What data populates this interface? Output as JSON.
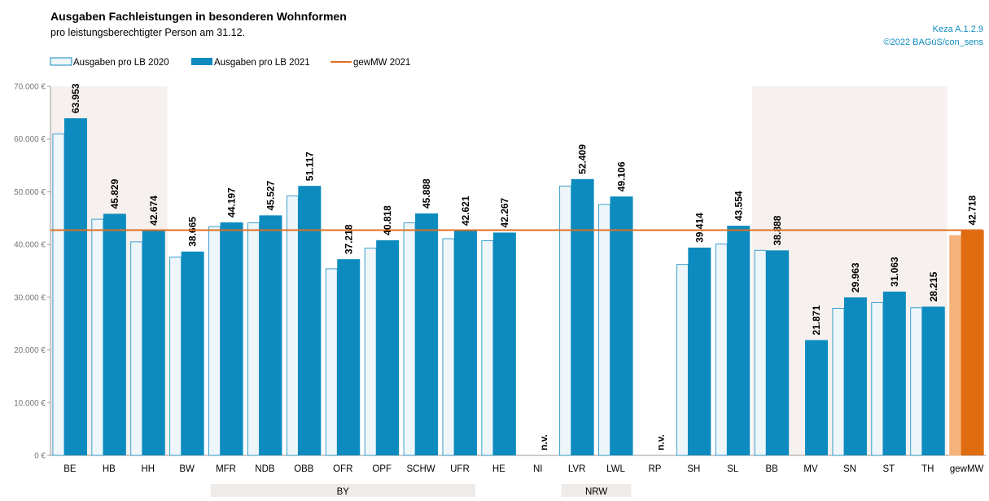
{
  "chart_data": {
    "type": "bar",
    "title": "Ausgaben Fachleistungen in besonderen Wohnformen",
    "subtitle": "pro leistungsberechtigter Person am 31.12.",
    "source_code": "Keza A.1.2.9",
    "source": "©2022 BAGüS/con_sens",
    "categories": [
      "BE",
      "HB",
      "HH",
      "BW",
      "MFR",
      "NDB",
      "OBB",
      "OFR",
      "OPF",
      "SCHW",
      "UFR",
      "HE",
      "NI",
      "LVR",
      "LWL",
      "RP",
      "SH",
      "SL",
      "BB",
      "MV",
      "SN",
      "ST",
      "TH",
      "gewMW"
    ],
    "series": [
      {
        "name": "Ausgaben pro LB 2020",
        "color": "#eef6fa",
        "stroke": "#0d8bbf",
        "colors": [
          "#eef6fa",
          "#eef6fa",
          "#eef6fa",
          "#eef6fa",
          "#eef6fa",
          "#eef6fa",
          "#eef6fa",
          "#eef6fa",
          "#eef6fa",
          "#eef6fa",
          "#eef6fa",
          "#eef6fa",
          "#eef6fa",
          "#eef6fa",
          "#eef6fa",
          "#eef6fa",
          "#eef6fa",
          "#eef6fa",
          "#eef6fa",
          "#eef6fa",
          "#eef6fa",
          "#eef6fa",
          "#eef6fa",
          "#f5b27a"
        ],
        "values": [
          61000,
          44800,
          40500,
          37600,
          43400,
          44100,
          49200,
          35400,
          39300,
          44100,
          41100,
          40700,
          null,
          51100,
          47600,
          null,
          36200,
          40100,
          38900,
          null,
          27900,
          29000,
          28000,
          41700
        ]
      },
      {
        "name": "Ausgaben pro LB 2021",
        "color": "#0d8bbf",
        "colors": [
          "#0d8bbf",
          "#0d8bbf",
          "#0d8bbf",
          "#0d8bbf",
          "#0d8bbf",
          "#0d8bbf",
          "#0d8bbf",
          "#0d8bbf",
          "#0d8bbf",
          "#0d8bbf",
          "#0d8bbf",
          "#0d8bbf",
          "#0d8bbf",
          "#0d8bbf",
          "#0d8bbf",
          "#0d8bbf",
          "#0d8bbf",
          "#0d8bbf",
          "#0d8bbf",
          "#0d8bbf",
          "#0d8bbf",
          "#0d8bbf",
          "#0d8bbf",
          "#e06c10"
        ],
        "values": [
          63953,
          45829,
          42674,
          38665,
          44197,
          45527,
          51117,
          37218,
          40818,
          45888,
          42621,
          42267,
          null,
          52409,
          49106,
          null,
          39414,
          43554,
          38888,
          21871,
          29963,
          31063,
          28215,
          42718
        ],
        "value_labels": [
          "63.953",
          "45.829",
          "42.674",
          "38.665",
          "44.197",
          "45.527",
          "51.117",
          "37.218",
          "40.818",
          "45.888",
          "42.621",
          "42.267",
          "n.v.",
          "52.409",
          "49.106",
          "n.v.",
          "39.414",
          "43.554",
          "38.888",
          "21.871",
          "29.963",
          "31.063",
          "28.215",
          "42.718"
        ]
      }
    ],
    "reference_line": {
      "name": "gewMW 2021",
      "value": 42718,
      "color": "#e07020"
    },
    "ylim": [
      0,
      70000
    ],
    "yticks": [
      {
        "value": 0,
        "label": "0 €"
      },
      {
        "value": 10000,
        "label": "10.000 €"
      },
      {
        "value": 20000,
        "label": "20.000 €"
      },
      {
        "value": 30000,
        "label": "30.000 €"
      },
      {
        "value": 40000,
        "label": "40.000 €"
      },
      {
        "value": 50000,
        "label": "50.000 €"
      },
      {
        "value": 60000,
        "label": "60.000 €"
      },
      {
        "value": 70000,
        "label": "70.000 €"
      }
    ],
    "shaded_ranges": [
      [
        0,
        2
      ],
      [
        18,
        22
      ]
    ],
    "groups": [
      {
        "label": "BY",
        "from": 4,
        "to": 10
      },
      {
        "label": "NRW",
        "from": 13,
        "to": 14
      }
    ],
    "grid": false
  }
}
